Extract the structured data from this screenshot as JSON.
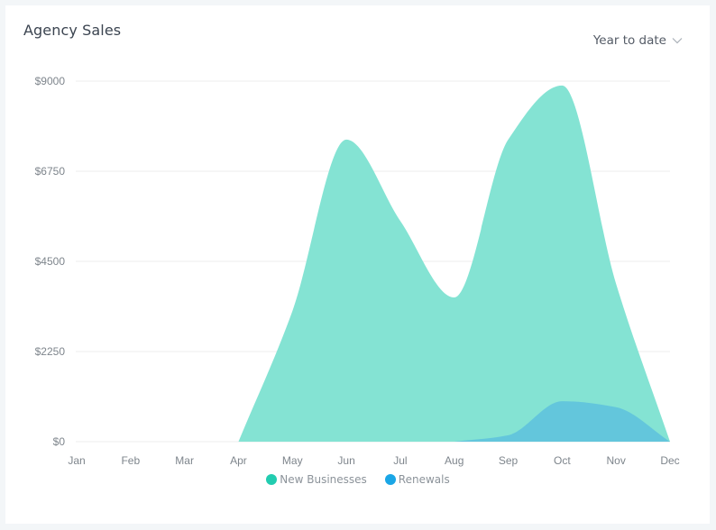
{
  "header": {
    "title": "Agency Sales",
    "range_label": "Year to date"
  },
  "colors": {
    "new_businesses": "#84e3d3",
    "new_businesses_legend": "#22ccb0",
    "renewals": "#63c6dc",
    "renewals_legend": "#1aa6e6",
    "grid": "#ececec",
    "axis_text": "#7e858c"
  },
  "legend": [
    {
      "label": "New Businesses",
      "color": "#22ccb0"
    },
    {
      "label": "Renewals",
      "color": "#1aa6e6"
    }
  ],
  "chart_data": {
    "type": "area",
    "title": "Agency Sales",
    "xlabel": "",
    "ylabel": "",
    "categories": [
      "Jan",
      "Feb",
      "Mar",
      "Apr",
      "May",
      "Jun",
      "Jul",
      "Aug",
      "Sep",
      "Oct",
      "Nov",
      "Dec"
    ],
    "yticks": [
      "$0",
      "$2250",
      "$4500",
      "$6750",
      "$9000"
    ],
    "ylim": [
      0,
      9000
    ],
    "grid": true,
    "legend_position": "bottom",
    "series": [
      {
        "name": "New Businesses",
        "values": [
          0,
          0,
          0,
          0,
          3260,
          7540,
          5510,
          3600,
          7540,
          8890,
          3940,
          0
        ]
      },
      {
        "name": "Renewals",
        "values": [
          0,
          0,
          0,
          0,
          0,
          0,
          0,
          0,
          160,
          1010,
          860,
          0
        ]
      }
    ]
  }
}
